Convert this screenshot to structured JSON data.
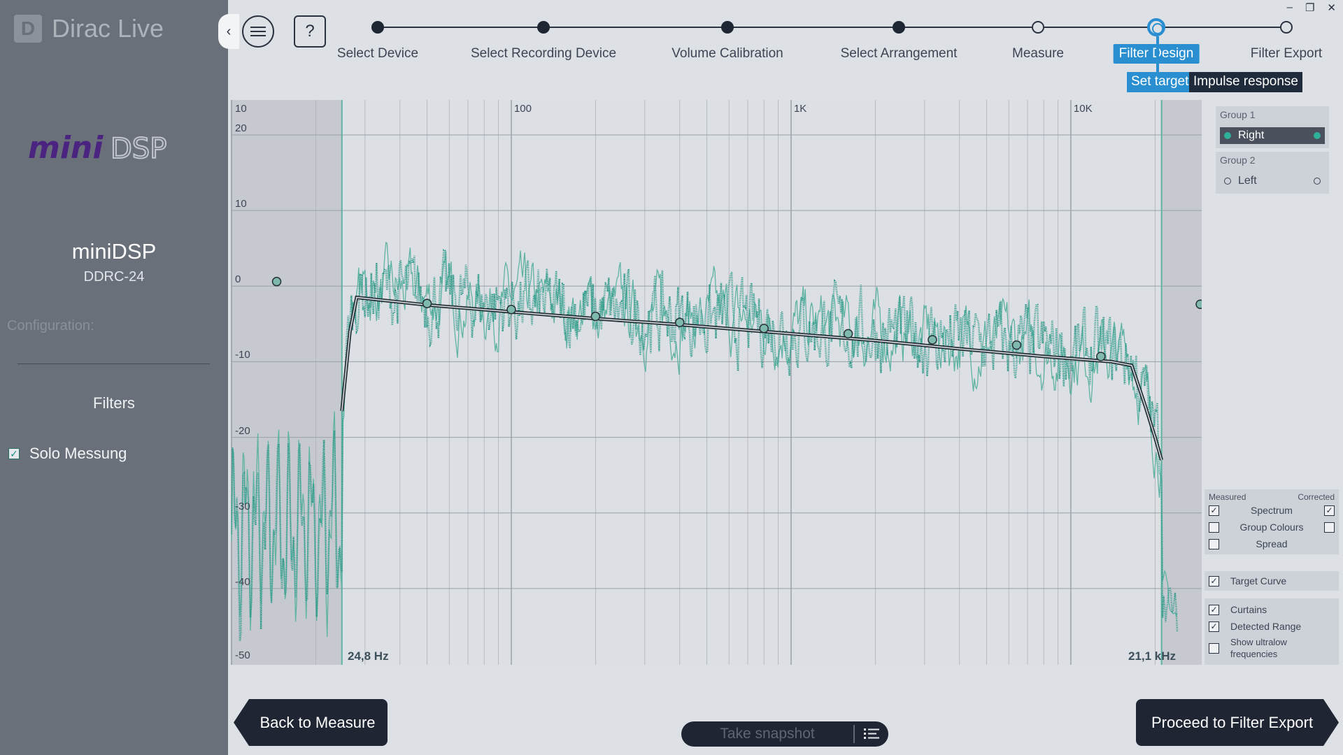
{
  "app": {
    "name": "Dirac Live",
    "logo_letter": "D"
  },
  "window_controls": {
    "minimize": "–",
    "restore": "❐",
    "close": "✕"
  },
  "sidebar": {
    "device_name": "miniDSP",
    "device_model": "DDRC-24",
    "configuration_label": "Configuration:",
    "filters_heading": "Filters",
    "filter_items": [
      {
        "label": "Solo Messung",
        "checked": true
      }
    ]
  },
  "toolbar": {
    "collapse_icon": "‹",
    "help_label": "?"
  },
  "steps": [
    {
      "label": "Select Device",
      "state": "done"
    },
    {
      "label": "Select Recording Device",
      "state": "done"
    },
    {
      "label": "Volume Calibration",
      "state": "done"
    },
    {
      "label": "Select Arrangement",
      "state": "done"
    },
    {
      "label": "Measure",
      "state": "open"
    },
    {
      "label": "Filter Design",
      "state": "active"
    },
    {
      "label": "Filter Export",
      "state": "open"
    }
  ],
  "subtabs": {
    "set_target": "Set target",
    "impulse_response": "Impulse response"
  },
  "chart_data": {
    "type": "line",
    "x_scale": "log",
    "xlim": [
      10,
      24000
    ],
    "ylim": [
      -50,
      20
    ],
    "x_ticks": [
      "10",
      "100",
      "1K",
      "10K"
    ],
    "y_ticks": [
      "20",
      "10",
      "0",
      "-10",
      "-20",
      "-30",
      "-40",
      "-50"
    ],
    "curtain_low_label": "24,8 Hz",
    "curtain_high_label": "21,1 kHz",
    "curtain_low_hz": 24.8,
    "curtain_high_hz": 21100,
    "target_curve": {
      "x": [
        24.8,
        26.5,
        28,
        50,
        100,
        200,
        400,
        1000,
        2000,
        4000,
        8000,
        14000,
        16500,
        18500,
        20000,
        21100
      ],
      "y": [
        -16.5,
        -6,
        -1.5,
        -2.5,
        -3.4,
        -4.3,
        -5.1,
        -6.3,
        -7.2,
        -8.3,
        -9.3,
        -10,
        -10.5,
        -16,
        -20,
        -23
      ]
    },
    "target_handles": {
      "x": [
        50,
        100,
        200,
        400,
        800,
        1600,
        3200,
        6400,
        12800
      ],
      "y": [
        -2.3,
        -3.1,
        -4.0,
        -4.8,
        -5.6,
        -6.3,
        -7.1,
        -7.8,
        -9.3
      ]
    },
    "series": [
      {
        "name": "Measured",
        "color": "#5fb3a3"
      },
      {
        "name": "Corrected",
        "color": "#2e9988"
      }
    ],
    "colors": {
      "target": "#263238",
      "measured": "#5fb3a3",
      "corrected": "#2e9988",
      "curtain": "#c7c9d0"
    }
  },
  "groups": [
    {
      "title": "Group 1",
      "item": "Right",
      "selected": true
    },
    {
      "title": "Group 2",
      "item": "Left",
      "selected": false
    }
  ],
  "display_options": {
    "measured_header": "Measured",
    "corrected_header": "Corrected",
    "rows": [
      {
        "label": "Spectrum",
        "measured": true,
        "corrected": true
      },
      {
        "label": "Group Colours",
        "measured": false,
        "corrected": false
      },
      {
        "label": "Spread",
        "measured": false
      }
    ],
    "target_curve": {
      "label": "Target Curve",
      "checked": true
    },
    "extra": [
      {
        "label": "Curtains",
        "checked": true
      },
      {
        "label": "Detected Range",
        "checked": true
      },
      {
        "label": "Show ultralow frequencies",
        "checked": false
      }
    ]
  },
  "footer": {
    "back_label": "Back to Measure",
    "snapshot_label": "Take snapshot",
    "proceed_label": "Proceed to Filter Export"
  }
}
